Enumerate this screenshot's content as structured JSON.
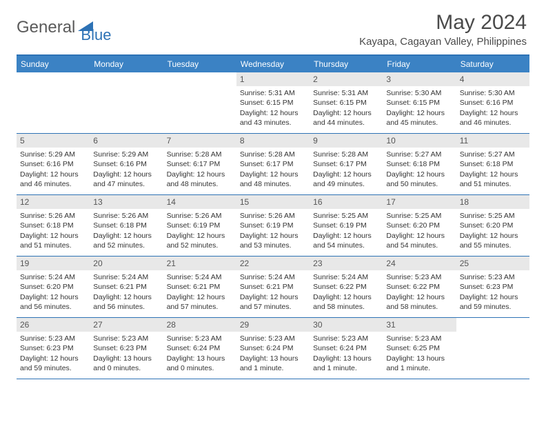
{
  "brand": {
    "part1": "General",
    "part2": "Blue"
  },
  "title": "May 2024",
  "location": "Kayapa, Cagayan Valley, Philippines",
  "colors": {
    "header_bg": "#3b82c4",
    "border": "#2d72b5",
    "daynum_bg": "#e8e8e8",
    "text": "#333333",
    "brand_gray": "#5a5a5a",
    "brand_blue": "#2d72b5"
  },
  "weekdays": [
    "Sunday",
    "Monday",
    "Tuesday",
    "Wednesday",
    "Thursday",
    "Friday",
    "Saturday"
  ],
  "weeks": [
    [
      {
        "n": "",
        "sr": "",
        "ss": "",
        "dl": ""
      },
      {
        "n": "",
        "sr": "",
        "ss": "",
        "dl": ""
      },
      {
        "n": "",
        "sr": "",
        "ss": "",
        "dl": ""
      },
      {
        "n": "1",
        "sr": "Sunrise: 5:31 AM",
        "ss": "Sunset: 6:15 PM",
        "dl": "Daylight: 12 hours and 43 minutes."
      },
      {
        "n": "2",
        "sr": "Sunrise: 5:31 AM",
        "ss": "Sunset: 6:15 PM",
        "dl": "Daylight: 12 hours and 44 minutes."
      },
      {
        "n": "3",
        "sr": "Sunrise: 5:30 AM",
        "ss": "Sunset: 6:15 PM",
        "dl": "Daylight: 12 hours and 45 minutes."
      },
      {
        "n": "4",
        "sr": "Sunrise: 5:30 AM",
        "ss": "Sunset: 6:16 PM",
        "dl": "Daylight: 12 hours and 46 minutes."
      }
    ],
    [
      {
        "n": "5",
        "sr": "Sunrise: 5:29 AM",
        "ss": "Sunset: 6:16 PM",
        "dl": "Daylight: 12 hours and 46 minutes."
      },
      {
        "n": "6",
        "sr": "Sunrise: 5:29 AM",
        "ss": "Sunset: 6:16 PM",
        "dl": "Daylight: 12 hours and 47 minutes."
      },
      {
        "n": "7",
        "sr": "Sunrise: 5:28 AM",
        "ss": "Sunset: 6:17 PM",
        "dl": "Daylight: 12 hours and 48 minutes."
      },
      {
        "n": "8",
        "sr": "Sunrise: 5:28 AM",
        "ss": "Sunset: 6:17 PM",
        "dl": "Daylight: 12 hours and 48 minutes."
      },
      {
        "n": "9",
        "sr": "Sunrise: 5:28 AM",
        "ss": "Sunset: 6:17 PM",
        "dl": "Daylight: 12 hours and 49 minutes."
      },
      {
        "n": "10",
        "sr": "Sunrise: 5:27 AM",
        "ss": "Sunset: 6:18 PM",
        "dl": "Daylight: 12 hours and 50 minutes."
      },
      {
        "n": "11",
        "sr": "Sunrise: 5:27 AM",
        "ss": "Sunset: 6:18 PM",
        "dl": "Daylight: 12 hours and 51 minutes."
      }
    ],
    [
      {
        "n": "12",
        "sr": "Sunrise: 5:26 AM",
        "ss": "Sunset: 6:18 PM",
        "dl": "Daylight: 12 hours and 51 minutes."
      },
      {
        "n": "13",
        "sr": "Sunrise: 5:26 AM",
        "ss": "Sunset: 6:18 PM",
        "dl": "Daylight: 12 hours and 52 minutes."
      },
      {
        "n": "14",
        "sr": "Sunrise: 5:26 AM",
        "ss": "Sunset: 6:19 PM",
        "dl": "Daylight: 12 hours and 52 minutes."
      },
      {
        "n": "15",
        "sr": "Sunrise: 5:26 AM",
        "ss": "Sunset: 6:19 PM",
        "dl": "Daylight: 12 hours and 53 minutes."
      },
      {
        "n": "16",
        "sr": "Sunrise: 5:25 AM",
        "ss": "Sunset: 6:19 PM",
        "dl": "Daylight: 12 hours and 54 minutes."
      },
      {
        "n": "17",
        "sr": "Sunrise: 5:25 AM",
        "ss": "Sunset: 6:20 PM",
        "dl": "Daylight: 12 hours and 54 minutes."
      },
      {
        "n": "18",
        "sr": "Sunrise: 5:25 AM",
        "ss": "Sunset: 6:20 PM",
        "dl": "Daylight: 12 hours and 55 minutes."
      }
    ],
    [
      {
        "n": "19",
        "sr": "Sunrise: 5:24 AM",
        "ss": "Sunset: 6:20 PM",
        "dl": "Daylight: 12 hours and 56 minutes."
      },
      {
        "n": "20",
        "sr": "Sunrise: 5:24 AM",
        "ss": "Sunset: 6:21 PM",
        "dl": "Daylight: 12 hours and 56 minutes."
      },
      {
        "n": "21",
        "sr": "Sunrise: 5:24 AM",
        "ss": "Sunset: 6:21 PM",
        "dl": "Daylight: 12 hours and 57 minutes."
      },
      {
        "n": "22",
        "sr": "Sunrise: 5:24 AM",
        "ss": "Sunset: 6:21 PM",
        "dl": "Daylight: 12 hours and 57 minutes."
      },
      {
        "n": "23",
        "sr": "Sunrise: 5:24 AM",
        "ss": "Sunset: 6:22 PM",
        "dl": "Daylight: 12 hours and 58 minutes."
      },
      {
        "n": "24",
        "sr": "Sunrise: 5:23 AM",
        "ss": "Sunset: 6:22 PM",
        "dl": "Daylight: 12 hours and 58 minutes."
      },
      {
        "n": "25",
        "sr": "Sunrise: 5:23 AM",
        "ss": "Sunset: 6:23 PM",
        "dl": "Daylight: 12 hours and 59 minutes."
      }
    ],
    [
      {
        "n": "26",
        "sr": "Sunrise: 5:23 AM",
        "ss": "Sunset: 6:23 PM",
        "dl": "Daylight: 12 hours and 59 minutes."
      },
      {
        "n": "27",
        "sr": "Sunrise: 5:23 AM",
        "ss": "Sunset: 6:23 PM",
        "dl": "Daylight: 13 hours and 0 minutes."
      },
      {
        "n": "28",
        "sr": "Sunrise: 5:23 AM",
        "ss": "Sunset: 6:24 PM",
        "dl": "Daylight: 13 hours and 0 minutes."
      },
      {
        "n": "29",
        "sr": "Sunrise: 5:23 AM",
        "ss": "Sunset: 6:24 PM",
        "dl": "Daylight: 13 hours and 1 minute."
      },
      {
        "n": "30",
        "sr": "Sunrise: 5:23 AM",
        "ss": "Sunset: 6:24 PM",
        "dl": "Daylight: 13 hours and 1 minute."
      },
      {
        "n": "31",
        "sr": "Sunrise: 5:23 AM",
        "ss": "Sunset: 6:25 PM",
        "dl": "Daylight: 13 hours and 1 minute."
      },
      {
        "n": "",
        "sr": "",
        "ss": "",
        "dl": ""
      }
    ]
  ]
}
